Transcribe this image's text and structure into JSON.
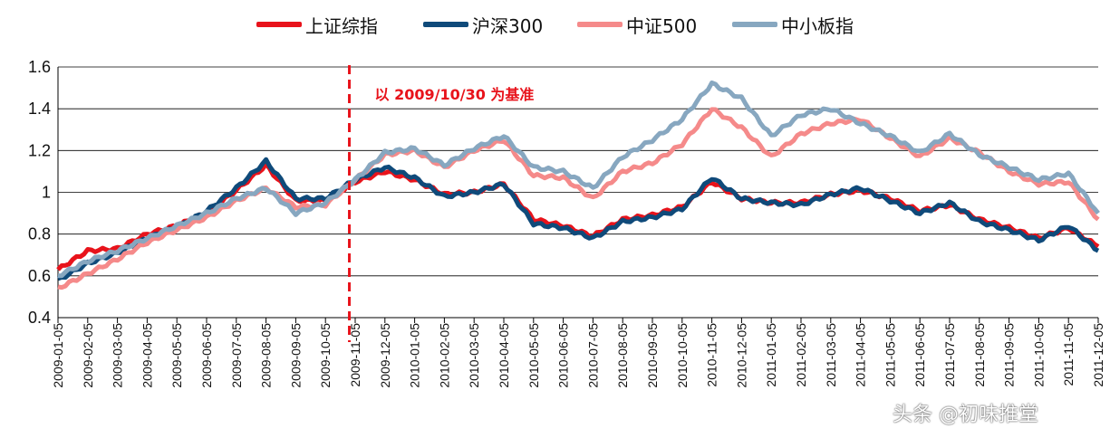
{
  "legend": {
    "items": [
      {
        "label": "上证综指",
        "color": "#e8131b"
      },
      {
        "label": "沪深300",
        "color": "#0f4a7a"
      },
      {
        "label": "中证500",
        "color": "#f58a8a"
      },
      {
        "label": "中小板指",
        "color": "#87a7c0"
      }
    ]
  },
  "watermark": "头条 @初味推堂",
  "chart_data": {
    "type": "line",
    "title": "",
    "xlabel": "",
    "ylabel": "",
    "ylim": [
      0.4,
      1.6
    ],
    "yticks": [
      "0.4",
      "0.6",
      "0.8",
      "1",
      "1.2",
      "1.4",
      "1.6"
    ],
    "grid": true,
    "legend_position": "top",
    "annotation": {
      "text": "以 2009/10/30 为基准",
      "x": "2009-10-30",
      "style": "red dashed vertical line"
    },
    "x": [
      "2009-01-05",
      "2009-02-05",
      "2009-03-05",
      "2009-04-05",
      "2009-05-05",
      "2009-06-05",
      "2009-07-05",
      "2009-08-05",
      "2009-09-05",
      "2009-10-05",
      "2009-11-05",
      "2009-12-05",
      "2010-01-05",
      "2010-02-05",
      "2010-03-05",
      "2010-04-05",
      "2010-05-05",
      "2010-06-05",
      "2010-07-05",
      "2010-08-05",
      "2010-09-05",
      "2010-10-05",
      "2010-11-05",
      "2010-12-05",
      "2011-01-05",
      "2011-02-05",
      "2011-03-05",
      "2011-04-05",
      "2011-05-05",
      "2011-06-05",
      "2011-07-05",
      "2011-08-05",
      "2011-09-05",
      "2011-10-05",
      "2011-11-05",
      "2011-12-05"
    ],
    "series": [
      {
        "name": "上证综指",
        "color": "#e8131b",
        "values": [
          0.63,
          0.72,
          0.73,
          0.8,
          0.84,
          0.9,
          1.01,
          1.13,
          0.96,
          0.96,
          1.05,
          1.1,
          1.06,
          0.99,
          1.0,
          1.04,
          0.87,
          0.84,
          0.79,
          0.87,
          0.89,
          0.93,
          1.05,
          0.97,
          0.95,
          0.95,
          0.99,
          1.01,
          0.97,
          0.91,
          0.94,
          0.87,
          0.83,
          0.78,
          0.83,
          0.74
        ]
      },
      {
        "name": "沪深300",
        "color": "#0f4a7a",
        "values": [
          0.58,
          0.66,
          0.71,
          0.78,
          0.83,
          0.91,
          1.02,
          1.15,
          0.97,
          0.97,
          1.06,
          1.12,
          1.07,
          0.98,
          1.0,
          1.04,
          0.85,
          0.83,
          0.78,
          0.86,
          0.88,
          0.92,
          1.07,
          0.97,
          0.95,
          0.94,
          0.99,
          1.02,
          0.96,
          0.9,
          0.95,
          0.86,
          0.82,
          0.77,
          0.84,
          0.72
        ]
      },
      {
        "name": "中证500",
        "color": "#f58a8a",
        "values": [
          0.54,
          0.61,
          0.68,
          0.76,
          0.82,
          0.88,
          0.96,
          1.02,
          0.93,
          0.94,
          1.06,
          1.18,
          1.2,
          1.12,
          1.2,
          1.25,
          1.08,
          1.07,
          0.97,
          1.1,
          1.14,
          1.23,
          1.4,
          1.31,
          1.17,
          1.28,
          1.33,
          1.35,
          1.26,
          1.17,
          1.26,
          1.19,
          1.1,
          1.04,
          1.05,
          0.87
        ]
      },
      {
        "name": "中小板指",
        "color": "#87a7c0",
        "values": [
          0.6,
          0.67,
          0.72,
          0.78,
          0.84,
          0.9,
          0.97,
          1.02,
          0.9,
          0.95,
          1.06,
          1.19,
          1.21,
          1.13,
          1.21,
          1.27,
          1.12,
          1.1,
          1.02,
          1.17,
          1.25,
          1.35,
          1.52,
          1.45,
          1.27,
          1.37,
          1.4,
          1.33,
          1.27,
          1.19,
          1.28,
          1.18,
          1.12,
          1.06,
          1.09,
          0.9
        ]
      }
    ]
  }
}
